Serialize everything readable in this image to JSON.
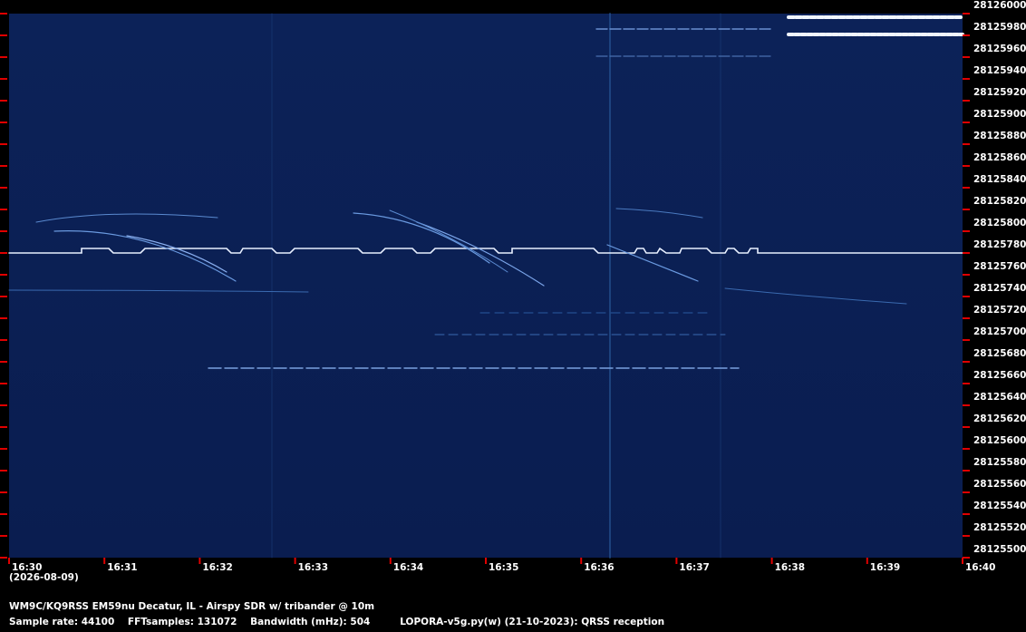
{
  "chart_data": {
    "type": "spectrogram",
    "x": [
      "16:30",
      "16:31",
      "16:32",
      "16:33",
      "16:34",
      "16:35",
      "16:36",
      "16:37",
      "16:38",
      "16:39",
      "16:40"
    ],
    "date": "(2026-08-09)",
    "ylim": [
      28125500,
      28126000
    ],
    "yticks": [
      28125500,
      28125520,
      28125540,
      28125560,
      28125580,
      28125600,
      28125620,
      28125640,
      28125660,
      28125680,
      28125700,
      28125720,
      28125740,
      28125760,
      28125780,
      28125800,
      28125820,
      28125840,
      28125860,
      28125880,
      28125900,
      28125920,
      28125940,
      28125960,
      28125980,
      28126000
    ],
    "footer": [
      "WM9C/KQ9RSS EM59nu Decatur, IL - Airspy SDR w/ tribander @ 10m",
      "Sample rate: 44100    FFTsamples: 131072    Bandwidth (mHz): 504         LOPORA-v5g.py(w) (21-10-2023): QRSS reception"
    ]
  }
}
